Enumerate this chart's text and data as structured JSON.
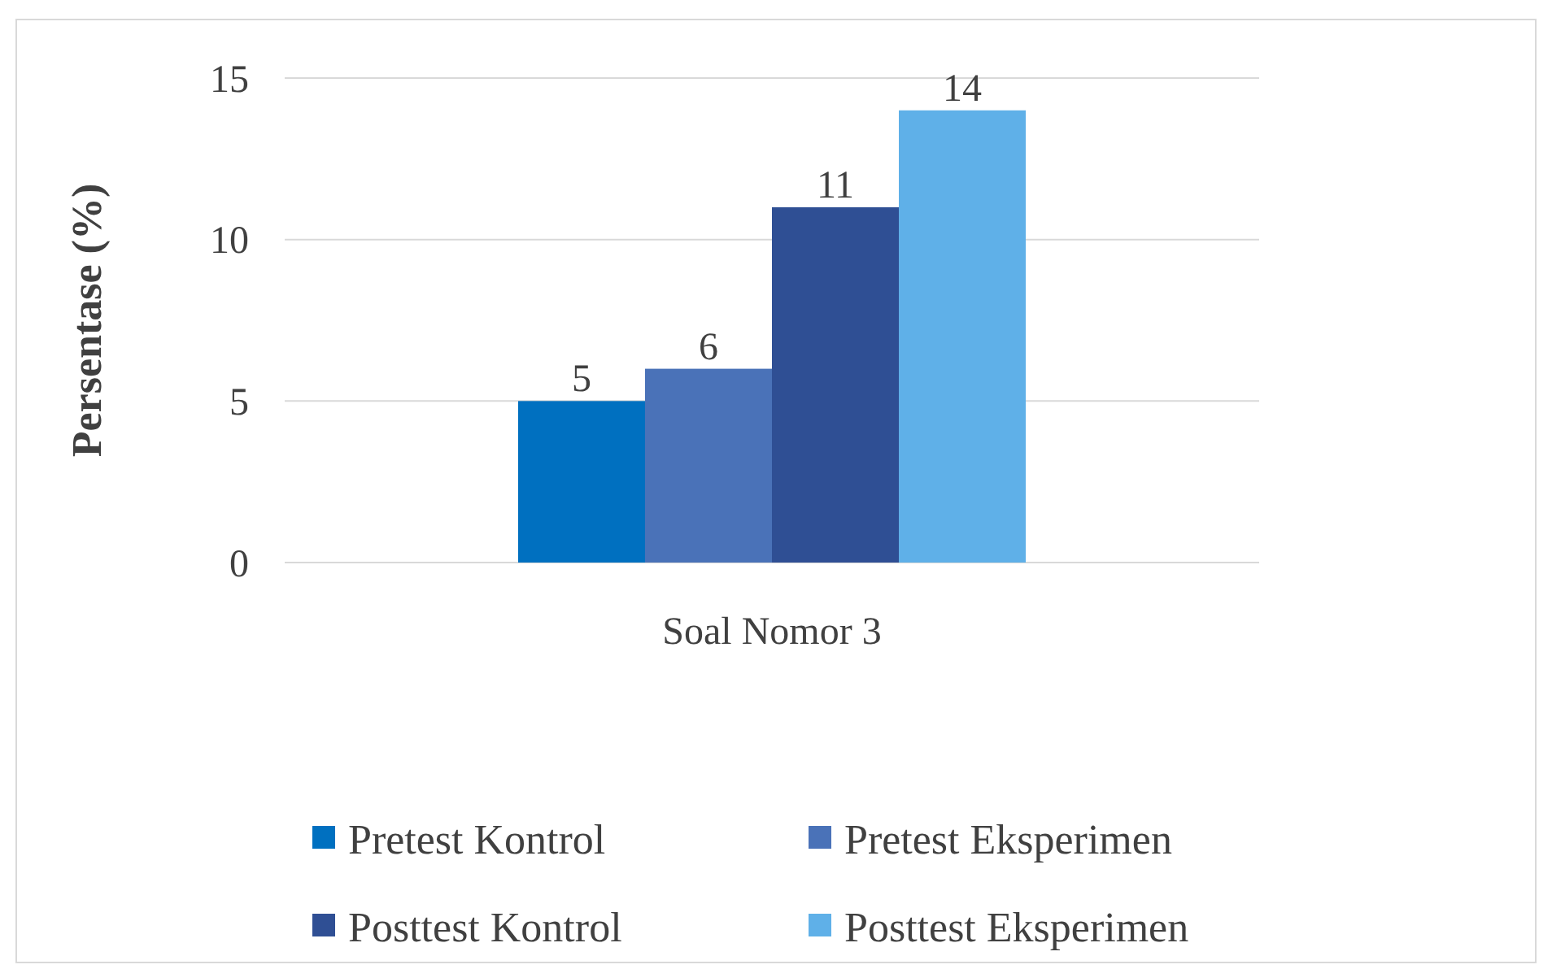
{
  "chart_data": {
    "type": "bar",
    "ylabel": "Persentase (%)",
    "categories": [
      "Soal Nomor 3"
    ],
    "series": [
      {
        "name": "Pretest Kontrol",
        "color": "#0070c0",
        "values": [
          5
        ]
      },
      {
        "name": "Pretest Eksperimen",
        "color": "#4a72b8",
        "values": [
          6
        ]
      },
      {
        "name": "Posttest Kontrol",
        "color": "#2f4f94",
        "values": [
          11
        ]
      },
      {
        "name": "Posttest Eksperimen",
        "color": "#5fb0e8",
        "values": [
          14
        ]
      }
    ],
    "ylim": [
      0,
      15
    ],
    "yticks": [
      0,
      5,
      10,
      15
    ],
    "grid": "y",
    "legend": "bottom",
    "data_labels": true
  }
}
